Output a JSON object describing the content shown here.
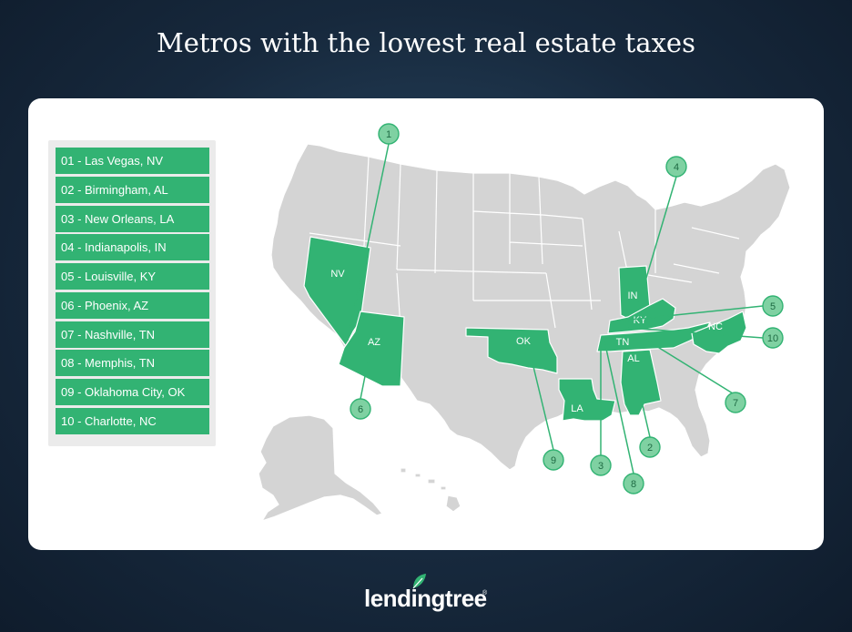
{
  "title": "Metros with the lowest real estate taxes",
  "legend": [
    "01 - Las Vegas, NV",
    "02 - Birmingham, AL",
    "03 - New Orleans, LA",
    "04 - Indianapolis, IN",
    "05 - Louisville, KY",
    "06 - Phoenix, AZ",
    "07 - Nashville, TN",
    "08 - Memphis, TN",
    "09 - Oklahoma City, OK",
    "10 - Charlotte, NC"
  ],
  "states": {
    "nv": "NV",
    "az": "AZ",
    "ok": "OK",
    "la": "LA",
    "in": "IN",
    "ky": "KY",
    "tn": "TN",
    "al": "AL",
    "nc": "NC"
  },
  "markers": {
    "m1": "1",
    "m2": "2",
    "m3": "3",
    "m4": "4",
    "m5": "5",
    "m6": "6",
    "m7": "7",
    "m8": "8",
    "m9": "9",
    "m10": "10"
  },
  "colors": {
    "highlight": "#32b373",
    "marker": "#7fd1a2",
    "land": "#d4d4d4",
    "border": "#ffffff"
  },
  "brand": {
    "name": "lendingtree",
    "icon": "leaf-icon"
  }
}
